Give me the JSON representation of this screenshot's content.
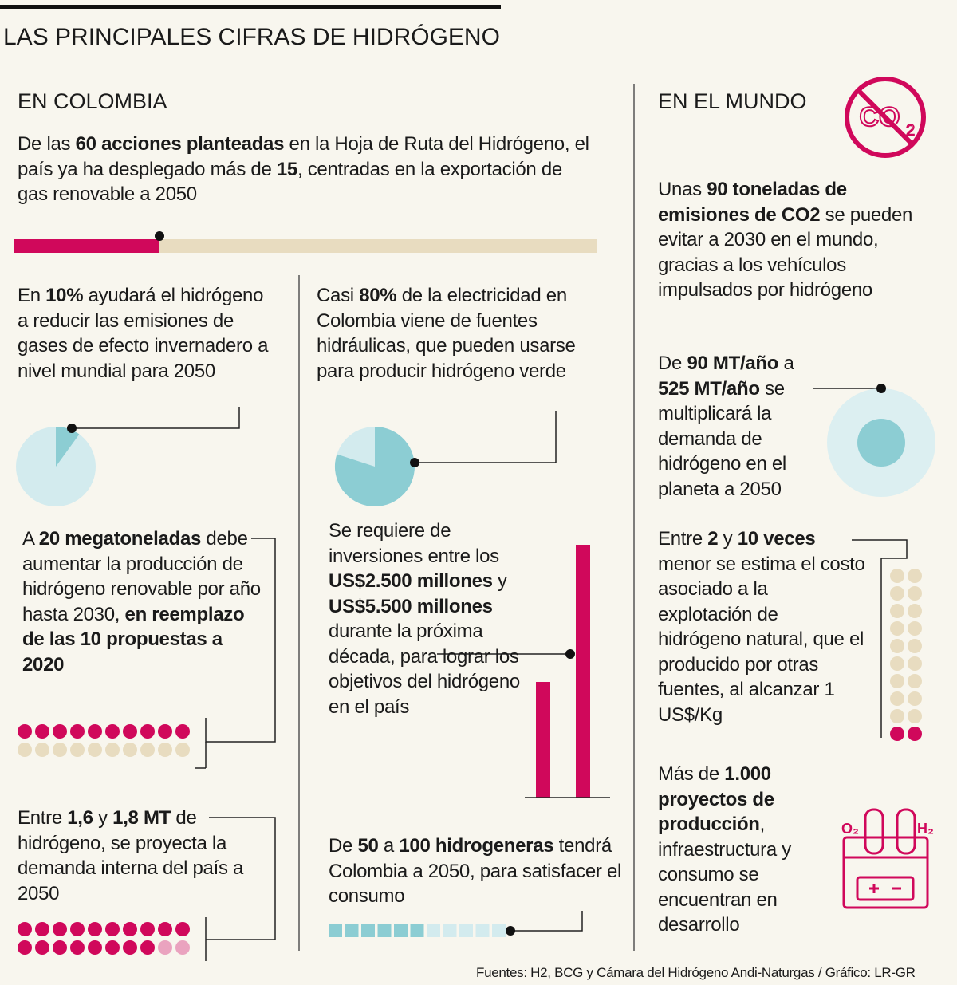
{
  "header": {
    "title": "LAS PRINCIPALES CIFRAS DE HIDRÓGENO"
  },
  "colombia": {
    "heading": "EN COLOMBIA",
    "items": [
      {
        "runs": [
          {
            "text": "De las "
          },
          {
            "text": "60 acciones planteadas",
            "bold": true
          },
          {
            "text": " en la Hoja de Ruta del Hidrógeno, el país ya ha desplegado más de "
          },
          {
            "text": "15",
            "bold": true
          },
          {
            "text": ", centradas en la exportación de gas renovable a 2050"
          }
        ]
      },
      {
        "runs": [
          {
            "text": "En "
          },
          {
            "text": "10%",
            "bold": true
          },
          {
            "text": " ayudará el hidrógeno a reducir las emisiones de gases de efecto invernadero a nivel mundial para 2050"
          }
        ]
      },
      {
        "runs": [
          {
            "text": "Casi "
          },
          {
            "text": "80%",
            "bold": true
          },
          {
            "text": " de la electricidad en Colombia viene de fuentes hidráulicas, que pueden usarse para producir hidrógeno verde"
          }
        ]
      },
      {
        "runs": [
          {
            "text": "A "
          },
          {
            "text": "20 megatoneladas",
            "bold": true
          },
          {
            "text": " debe aumentar la producción de hidrógeno renovable por año hasta 2030, "
          },
          {
            "text": "en reemplazo de las 10 propuestas a 2020",
            "bold": true
          }
        ]
      },
      {
        "runs": [
          {
            "text": "Se requiere de inversiones entre los "
          },
          {
            "text": "US$2.500 millones",
            "bold": true
          },
          {
            "text": " y "
          },
          {
            "text": "US$5.500 millones",
            "bold": true
          },
          {
            "text": " durante la próxima década, para lograr los objetivos del hidrógeno en el país"
          }
        ]
      },
      {
        "runs": [
          {
            "text": "Entre "
          },
          {
            "text": "1,6",
            "bold": true
          },
          {
            "text": " y "
          },
          {
            "text": "1,8 MT",
            "bold": true
          },
          {
            "text": " de hidrógeno, se proyecta la demanda interna del país a 2050"
          }
        ]
      },
      {
        "runs": [
          {
            "text": "De "
          },
          {
            "text": "50",
            "bold": true
          },
          {
            "text": " a "
          },
          {
            "text": "100 hidrogeneras",
            "bold": true
          },
          {
            "text": " tendrá Colombia a 2050, para satisfacer el consumo"
          }
        ]
      }
    ]
  },
  "mundo": {
    "heading": "EN EL MUNDO",
    "items": [
      {
        "runs": [
          {
            "text": "Unas "
          },
          {
            "text": "90 toneladas de emisiones de CO2",
            "bold": true
          },
          {
            "text": " se pueden evitar a 2030 en el mundo, gracias a los vehículos impulsados por hidrógeno"
          }
        ]
      },
      {
        "runs": [
          {
            "text": "De "
          },
          {
            "text": "90 MT/año",
            "bold": true
          },
          {
            "text": " a "
          },
          {
            "text": "525 MT/año",
            "bold": true
          },
          {
            "text": " se multiplicará la demanda de hidrógeno en el planeta a 2050"
          }
        ]
      },
      {
        "runs": [
          {
            "text": "Entre "
          },
          {
            "text": "2",
            "bold": true
          },
          {
            "text": " y "
          },
          {
            "text": "10 veces",
            "bold": true
          },
          {
            "text": " menor se estima el costo asociado a la explotación de hidrógeno natural, que el producido por otras fuentes, al alcanzar 1 US$/Kg"
          }
        ]
      },
      {
        "runs": [
          {
            "text": "Más de "
          },
          {
            "text": "1.000 proyectos de producción",
            "bold": true
          },
          {
            "text": ", infraestructura y consumo se encuentran en desarrollo"
          }
        ]
      }
    ]
  },
  "icons": {
    "co2": "CO",
    "co2_sub": "2",
    "left": "O₂",
    "right": "H₂"
  },
  "footer": {
    "source": "Fuentes: H2, BCG y Cámara del Hidrógeno Andi-Naturgas / Gráfico: LR-GR"
  }
}
